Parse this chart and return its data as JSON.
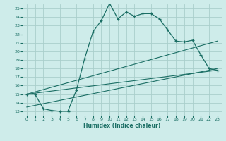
{
  "xlabel": "Humidex (Indice chaleur)",
  "bg_color": "#ceecea",
  "grid_color": "#aacfcc",
  "line_color": "#1a6e64",
  "xlim": [
    -0.5,
    23.5
  ],
  "ylim": [
    12.5,
    25.5
  ],
  "xticks": [
    0,
    1,
    2,
    3,
    4,
    5,
    6,
    7,
    8,
    9,
    10,
    11,
    12,
    13,
    14,
    15,
    16,
    17,
    18,
    19,
    20,
    21,
    22,
    23
  ],
  "yticks": [
    13,
    14,
    15,
    16,
    17,
    18,
    19,
    20,
    21,
    22,
    23,
    24,
    25
  ],
  "series1_x": [
    0,
    1,
    2,
    3,
    4,
    5,
    5,
    6,
    7,
    8,
    9,
    10,
    11,
    12,
    13,
    14,
    15,
    16,
    17,
    18,
    19,
    20,
    21,
    22,
    23
  ],
  "series1_y": [
    15,
    15,
    13.3,
    13.1,
    13.0,
    13.0,
    13.1,
    15.5,
    19.2,
    22.3,
    23.6,
    25.6,
    23.8,
    24.6,
    24.1,
    24.4,
    24.4,
    23.8,
    22.5,
    21.2,
    21.1,
    21.3,
    19.6,
    18.0,
    17.8
  ],
  "line2_x": [
    0,
    23
  ],
  "line2_y": [
    15.0,
    21.2
  ],
  "line3_x": [
    0,
    23
  ],
  "line3_y": [
    13.5,
    18.0
  ],
  "line4_x": [
    0,
    23
  ],
  "line4_y": [
    15.0,
    17.8
  ]
}
